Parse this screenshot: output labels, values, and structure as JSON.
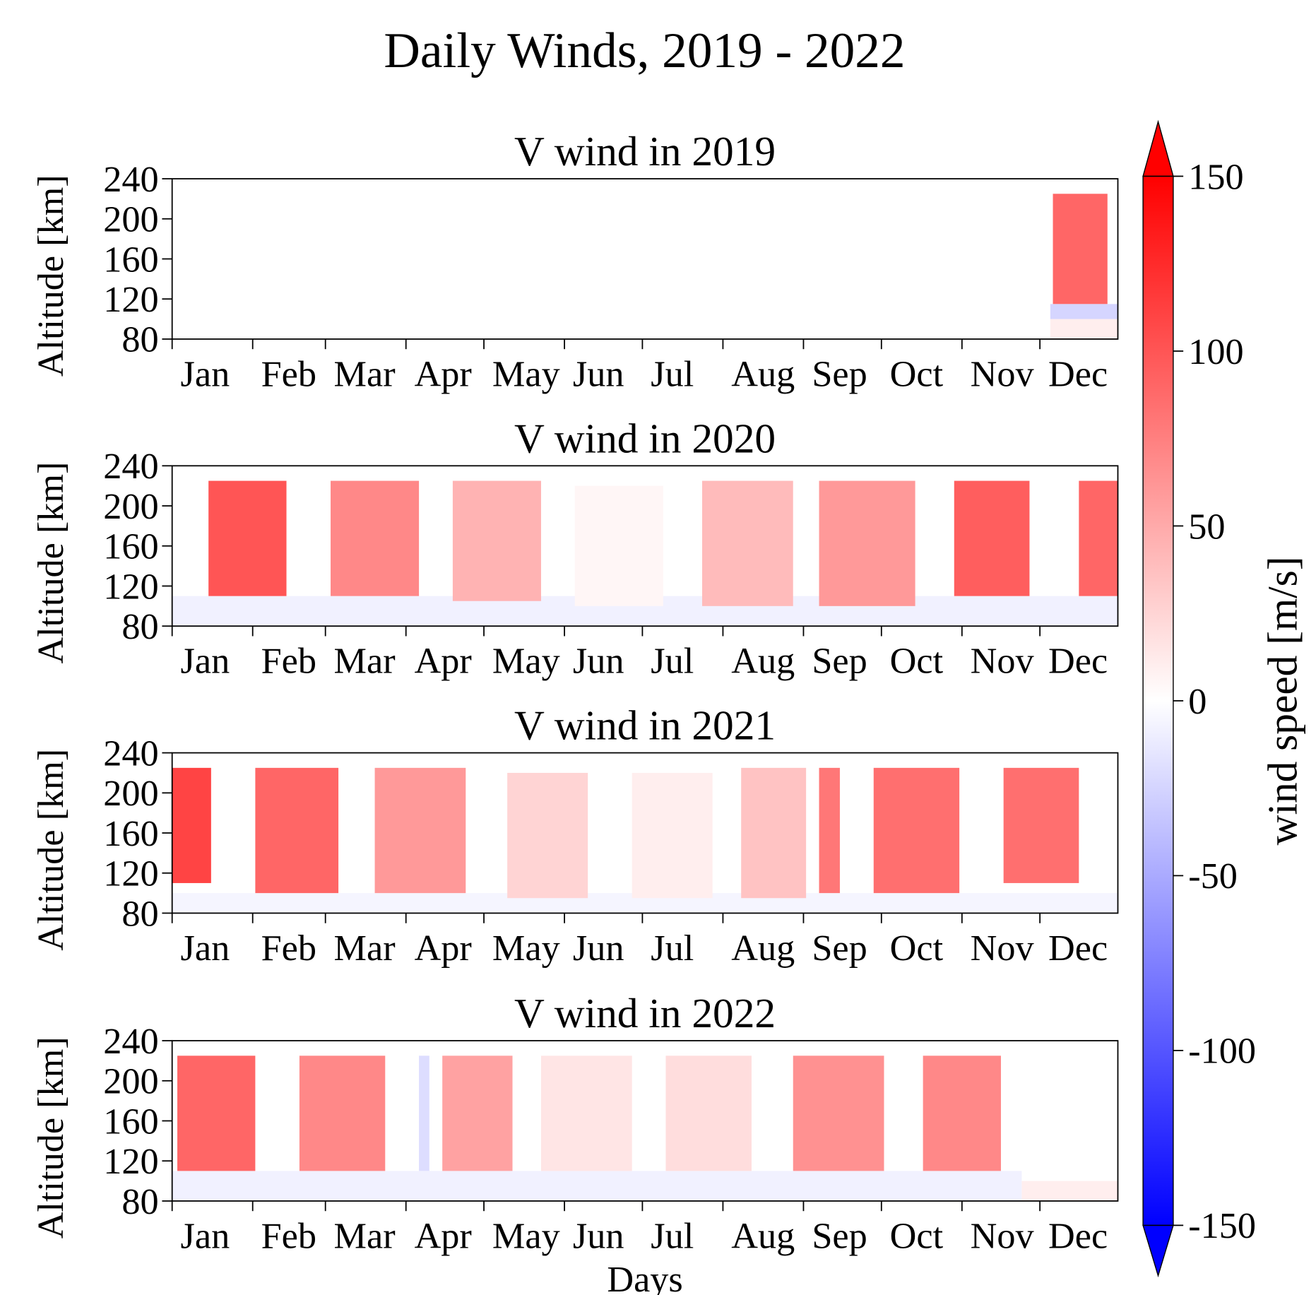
{
  "title": "Daily Winds, 2019 - 2022",
  "chart_data": [
    {
      "type": "heatmap",
      "title": "V wind in 2019",
      "ylabel": "Altitude [km]",
      "xlim": [
        1,
        365
      ],
      "ylim": [
        80,
        240
      ],
      "yticks": [
        80,
        120,
        160,
        200,
        240
      ],
      "xticks": [
        {
          "value": 1,
          "label": "Jan"
        },
        {
          "value": 32,
          "label": "Feb"
        },
        {
          "value": 60,
          "label": "Mar"
        },
        {
          "value": 91,
          "label": "Apr"
        },
        {
          "value": 121,
          "label": "May"
        },
        {
          "value": 152,
          "label": "Jun"
        },
        {
          "value": 182,
          "label": "Jul"
        },
        {
          "value": 213,
          "label": "Aug"
        },
        {
          "value": 244,
          "label": "Sep"
        },
        {
          "value": 274,
          "label": "Oct"
        },
        {
          "value": 305,
          "label": "Nov"
        },
        {
          "value": 335,
          "label": "Dec"
        }
      ],
      "blocks": [
        {
          "x": [
            339,
            365
          ],
          "y": [
            80,
            100
          ],
          "value": 10
        },
        {
          "x": [
            339,
            365
          ],
          "y": [
            100,
            115
          ],
          "value": -25
        },
        {
          "x": [
            340,
            361
          ],
          "y": [
            115,
            225
          ],
          "value": 90
        }
      ]
    },
    {
      "type": "heatmap",
      "title": "V wind in 2020",
      "ylabel": "Altitude [km]",
      "xlim": [
        1,
        365
      ],
      "ylim": [
        80,
        240
      ],
      "yticks": [
        80,
        120,
        160,
        200,
        240
      ],
      "xticks": [
        {
          "value": 1,
          "label": "Jan"
        },
        {
          "value": 32,
          "label": "Feb"
        },
        {
          "value": 60,
          "label": "Mar"
        },
        {
          "value": 91,
          "label": "Apr"
        },
        {
          "value": 121,
          "label": "May"
        },
        {
          "value": 152,
          "label": "Jun"
        },
        {
          "value": 182,
          "label": "Jul"
        },
        {
          "value": 213,
          "label": "Aug"
        },
        {
          "value": 244,
          "label": "Sep"
        },
        {
          "value": 274,
          "label": "Oct"
        },
        {
          "value": 305,
          "label": "Nov"
        },
        {
          "value": 335,
          "label": "Dec"
        }
      ],
      "blocks": [
        {
          "x": [
            1,
            365
          ],
          "y": [
            80,
            110
          ],
          "value": -8
        },
        {
          "x": [
            15,
            45
          ],
          "y": [
            110,
            225
          ],
          "value": 100
        },
        {
          "x": [
            62,
            96
          ],
          "y": [
            110,
            225
          ],
          "value": 70
        },
        {
          "x": [
            109,
            143
          ],
          "y": [
            105,
            225
          ],
          "value": 45
        },
        {
          "x": [
            156,
            190
          ],
          "y": [
            100,
            220
          ],
          "value": 5
        },
        {
          "x": [
            205,
            240
          ],
          "y": [
            100,
            225
          ],
          "value": 40
        },
        {
          "x": [
            250,
            287
          ],
          "y": [
            100,
            225
          ],
          "value": 60
        },
        {
          "x": [
            302,
            331
          ],
          "y": [
            110,
            225
          ],
          "value": 95
        },
        {
          "x": [
            350,
            365
          ],
          "y": [
            110,
            225
          ],
          "value": 90
        }
      ]
    },
    {
      "type": "heatmap",
      "title": "V wind in 2021",
      "ylabel": "Altitude [km]",
      "xlim": [
        1,
        365
      ],
      "ylim": [
        80,
        240
      ],
      "yticks": [
        80,
        120,
        160,
        200,
        240
      ],
      "xticks": [
        {
          "value": 1,
          "label": "Jan"
        },
        {
          "value": 32,
          "label": "Feb"
        },
        {
          "value": 60,
          "label": "Mar"
        },
        {
          "value": 91,
          "label": "Apr"
        },
        {
          "value": 121,
          "label": "May"
        },
        {
          "value": 152,
          "label": "Jun"
        },
        {
          "value": 182,
          "label": "Jul"
        },
        {
          "value": 213,
          "label": "Aug"
        },
        {
          "value": 244,
          "label": "Sep"
        },
        {
          "value": 274,
          "label": "Oct"
        },
        {
          "value": 305,
          "label": "Nov"
        },
        {
          "value": 335,
          "label": "Dec"
        }
      ],
      "blocks": [
        {
          "x": [
            1,
            365
          ],
          "y": [
            80,
            100
          ],
          "value": -6
        },
        {
          "x": [
            1,
            16
          ],
          "y": [
            110,
            225
          ],
          "value": 110
        },
        {
          "x": [
            33,
            65
          ],
          "y": [
            100,
            225
          ],
          "value": 90
        },
        {
          "x": [
            79,
            114
          ],
          "y": [
            100,
            225
          ],
          "value": 60
        },
        {
          "x": [
            130,
            161
          ],
          "y": [
            95,
            220
          ],
          "value": 25
        },
        {
          "x": [
            178,
            209
          ],
          "y": [
            95,
            220
          ],
          "value": 10
        },
        {
          "x": [
            220,
            245
          ],
          "y": [
            95,
            225
          ],
          "value": 35
        },
        {
          "x": [
            250,
            258
          ],
          "y": [
            100,
            225
          ],
          "value": 80
        },
        {
          "x": [
            271,
            304
          ],
          "y": [
            100,
            225
          ],
          "value": 85
        },
        {
          "x": [
            321,
            350
          ],
          "y": [
            110,
            225
          ],
          "value": 85
        }
      ]
    },
    {
      "type": "heatmap",
      "title": "V wind in 2022",
      "ylabel": "Altitude [km]",
      "xlabel": "Days",
      "xlim": [
        1,
        365
      ],
      "ylim": [
        80,
        240
      ],
      "yticks": [
        80,
        120,
        160,
        200,
        240
      ],
      "xticks": [
        {
          "value": 1,
          "label": "Jan"
        },
        {
          "value": 32,
          "label": "Feb"
        },
        {
          "value": 60,
          "label": "Mar"
        },
        {
          "value": 91,
          "label": "Apr"
        },
        {
          "value": 121,
          "label": "May"
        },
        {
          "value": 152,
          "label": "Jun"
        },
        {
          "value": 182,
          "label": "Jul"
        },
        {
          "value": 213,
          "label": "Aug"
        },
        {
          "value": 244,
          "label": "Sep"
        },
        {
          "value": 274,
          "label": "Oct"
        },
        {
          "value": 305,
          "label": "Nov"
        },
        {
          "value": 335,
          "label": "Dec"
        }
      ],
      "blocks": [
        {
          "x": [
            1,
            328
          ],
          "y": [
            80,
            110
          ],
          "value": -8
        },
        {
          "x": [
            328,
            365
          ],
          "y": [
            80,
            100
          ],
          "value": 10
        },
        {
          "x": [
            3,
            33
          ],
          "y": [
            110,
            225
          ],
          "value": 90
        },
        {
          "x": [
            50,
            83
          ],
          "y": [
            110,
            225
          ],
          "value": 70
        },
        {
          "x": [
            96,
            100
          ],
          "y": [
            110,
            225
          ],
          "value": -20
        },
        {
          "x": [
            105,
            132
          ],
          "y": [
            110,
            225
          ],
          "value": 55
        },
        {
          "x": [
            143,
            178
          ],
          "y": [
            110,
            225
          ],
          "value": 15
        },
        {
          "x": [
            191,
            224
          ],
          "y": [
            110,
            225
          ],
          "value": 20
        },
        {
          "x": [
            240,
            275
          ],
          "y": [
            110,
            225
          ],
          "value": 65
        },
        {
          "x": [
            290,
            320
          ],
          "y": [
            110,
            225
          ],
          "value": 70
        }
      ]
    }
  ],
  "colorbar": {
    "label": "wind speed [m/s]",
    "colormap": "bwr",
    "extend": "both",
    "lim": [
      -150,
      150
    ],
    "ticks": [
      -150,
      -100,
      -50,
      0,
      50,
      100,
      150
    ]
  }
}
